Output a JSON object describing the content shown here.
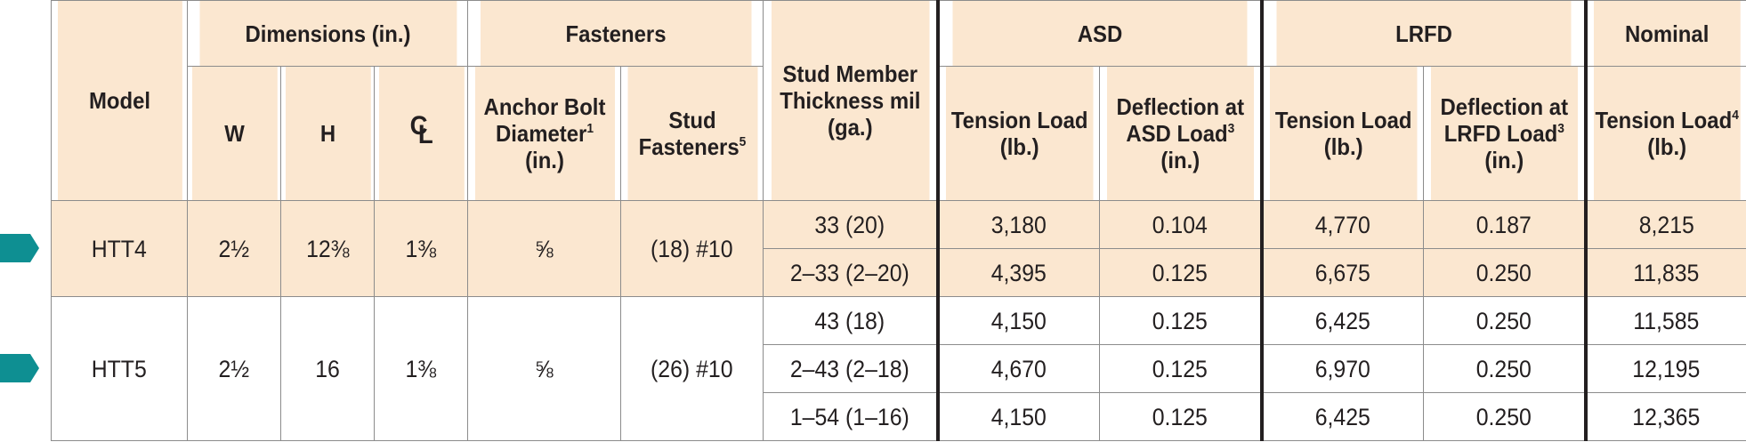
{
  "colors": {
    "header_bg": "#fbe7d0",
    "highlight_bg": "#fbe7d0",
    "arrow": "#0e8f92",
    "border": "#8c8c8c"
  },
  "headers": {
    "model": "Model",
    "dimensions": "Dimensions (in.)",
    "w": "W",
    "h": "H",
    "cl": "CL",
    "fasteners": "Fasteners",
    "anchor_bolt": "Anchor Bolt Diameter",
    "anchor_bolt_note": "1",
    "anchor_bolt_unit": "(in.)",
    "stud_fasteners": "Stud Fasteners",
    "stud_fasteners_note": "5",
    "stud_thickness": "Stud Member Thickness mil (ga.)",
    "asd": "ASD",
    "lrfd": "LRFD",
    "nominal": "Nominal",
    "tension_load": "Tension Load",
    "lb": "(lb.)",
    "deflection_asd": "Deflection at ASD Load",
    "deflection_lrfd": "Deflection at LRFD Load",
    "deflection_note": "3",
    "in": "(in.)",
    "nominal_note": "4"
  },
  "models": [
    {
      "model": "HTT4",
      "w": "2½",
      "h": "12⅜",
      "cl": "1⅜",
      "anchor": "⅝",
      "fasteners": "(18) #10",
      "rows": [
        {
          "thickness": "33 (20)",
          "asd_tension": "3,180",
          "asd_deflection": "0.104",
          "lrfd_tension": "4,770",
          "lrfd_deflection": "0.187",
          "nominal": "8,215"
        },
        {
          "thickness": "2–33 (2–20)",
          "asd_tension": "4,395",
          "asd_deflection": "0.125",
          "lrfd_tension": "6,675",
          "lrfd_deflection": "0.250",
          "nominal": "11,835"
        }
      ]
    },
    {
      "model": "HTT5",
      "w": "2½",
      "h": "16",
      "cl": "1⅜",
      "anchor": "⅝",
      "fasteners": "(26) #10",
      "rows": [
        {
          "thickness": "43 (18)",
          "asd_tension": "4,150",
          "asd_deflection": "0.125",
          "lrfd_tension": "6,425",
          "lrfd_deflection": "0.250",
          "nominal": "11,585"
        },
        {
          "thickness": "2–43 (2–18)",
          "asd_tension": "4,670",
          "asd_deflection": "0.125",
          "lrfd_tension": "6,970",
          "lrfd_deflection": "0.250",
          "nominal": "12,195"
        },
        {
          "thickness": "1–54 (1–16)",
          "asd_tension": "4,150",
          "asd_deflection": "0.125",
          "lrfd_tension": "6,425",
          "lrfd_deflection": "0.250",
          "nominal": "12,365"
        }
      ]
    }
  ]
}
